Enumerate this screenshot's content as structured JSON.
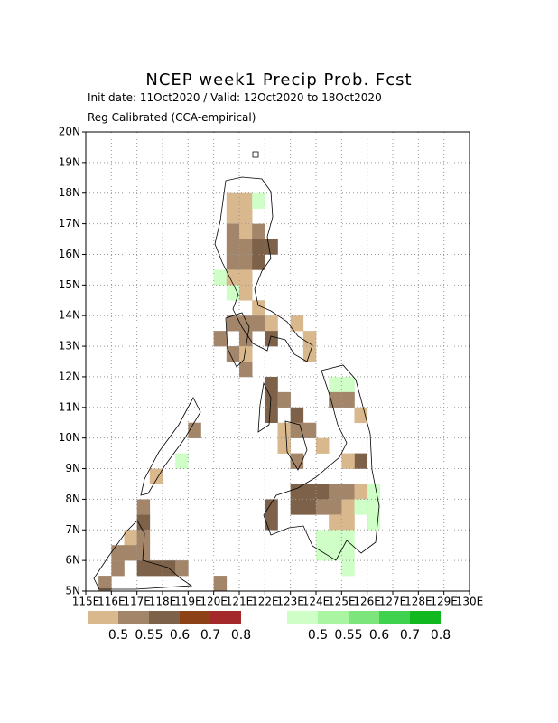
{
  "map": {
    "title": "NCEP week1 Precip Prob. Fcst",
    "subtitle": "Init date: 11Oct2020 / Valid: 12Oct2020 to 18Oct2020",
    "note": "Reg Calibrated (CCA-empirical)",
    "lon_ticks": [
      {
        "value": 115,
        "label": "115E"
      },
      {
        "value": 116,
        "label": "116E"
      },
      {
        "value": 117,
        "label": "117E"
      },
      {
        "value": 118,
        "label": "118E"
      },
      {
        "value": 119,
        "label": "119E"
      },
      {
        "value": 120,
        "label": "120E"
      },
      {
        "value": 121,
        "label": "121E"
      },
      {
        "value": 122,
        "label": "122E"
      },
      {
        "value": 123,
        "label": "123E"
      },
      {
        "value": 124,
        "label": "124E"
      },
      {
        "value": 125,
        "label": "125E"
      },
      {
        "value": 126,
        "label": "126E"
      },
      {
        "value": 127,
        "label": "127E"
      },
      {
        "value": 128,
        "label": "128E"
      },
      {
        "value": 129,
        "label": "129E"
      },
      {
        "value": 130,
        "label": "130E"
      }
    ],
    "lat_ticks": [
      {
        "value": 5,
        "label": "5N"
      },
      {
        "value": 6,
        "label": "6N"
      },
      {
        "value": 7,
        "label": "7N"
      },
      {
        "value": 8,
        "label": "8N"
      },
      {
        "value": 9,
        "label": "9N"
      },
      {
        "value": 10,
        "label": "10N"
      },
      {
        "value": 11,
        "label": "11N"
      },
      {
        "value": 12,
        "label": "12N"
      },
      {
        "value": 13,
        "label": "13N"
      },
      {
        "value": 14,
        "label": "14N"
      },
      {
        "value": 15,
        "label": "15N"
      },
      {
        "value": 16,
        "label": "16N"
      },
      {
        "value": 17,
        "label": "17N"
      },
      {
        "value": 18,
        "label": "18N"
      },
      {
        "value": 19,
        "label": "19N"
      },
      {
        "value": 20,
        "label": "20N"
      }
    ],
    "legend_dry": {
      "colors": [
        "#d8b88c",
        "#a3856a",
        "#7d6149",
        "#8c4216",
        "#a3292b"
      ],
      "labels": [
        0.5,
        0.55,
        0.6,
        0.7,
        0.8
      ]
    },
    "legend_wet": {
      "colors": [
        "#cfffc6",
        "#a9f5a2",
        "#7ce57c",
        "#3ed24e",
        "#11b81f"
      ],
      "labels": [
        0.5,
        0.55,
        0.6,
        0.7,
        0.8
      ]
    }
  }
}
